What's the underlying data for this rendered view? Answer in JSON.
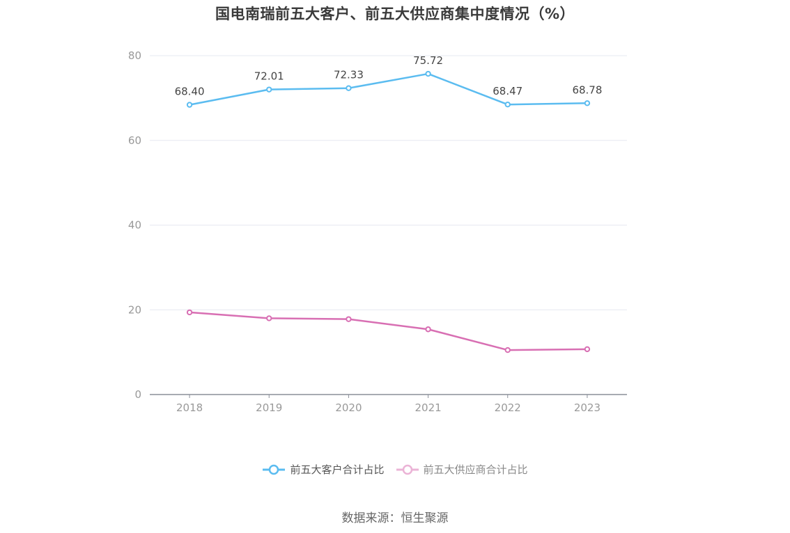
{
  "title": "国电南瑞前五大客户、前五大供应商集中度情况（%）",
  "source": "数据来源：恒生聚源",
  "chart_data": {
    "type": "line",
    "title": "国电南瑞前五大客户、前五大供应商集中度情况（%）",
    "categories": [
      "2018",
      "2019",
      "2020",
      "2021",
      "2022",
      "2023"
    ],
    "ylim": [
      0,
      80
    ],
    "yticks": [
      "0",
      "20",
      "40",
      "60",
      "80"
    ],
    "grid": true,
    "legend_position": "bottom",
    "series": [
      {
        "name": "前五大客户合计占比",
        "color": "#5bbcf0",
        "values": [
          68.4,
          72.01,
          72.33,
          75.72,
          68.47,
          68.78
        ],
        "labels": [
          "68.40",
          "72.01",
          "72.33",
          "75.72",
          "68.47",
          "68.78"
        ]
      },
      {
        "name": "前五大供应商合计占比",
        "color": "#d86fb3",
        "values": [
          19.4,
          18.0,
          17.8,
          15.4,
          10.5,
          10.7
        ]
      }
    ]
  }
}
